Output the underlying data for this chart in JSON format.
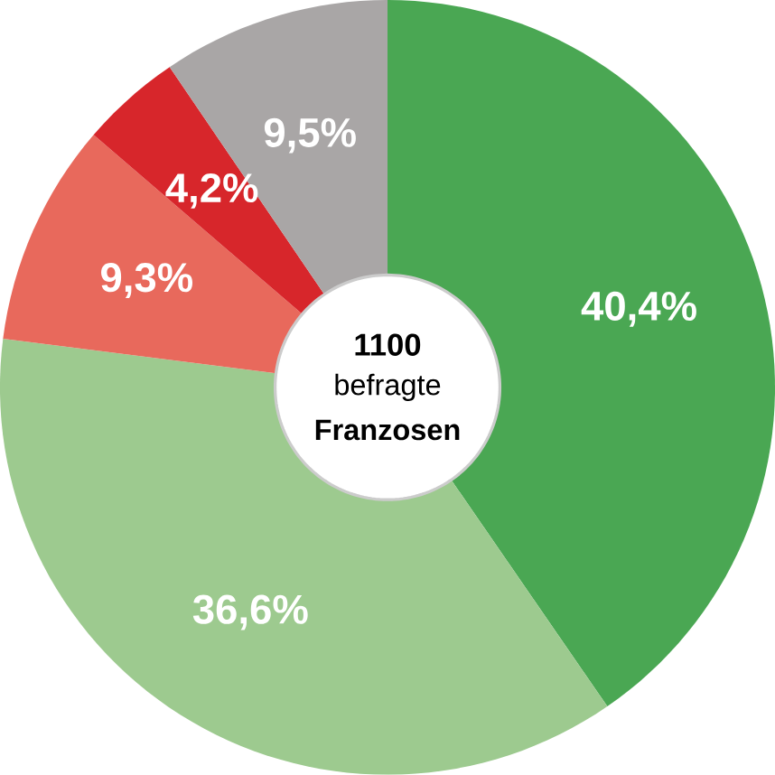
{
  "chart_data": {
    "type": "donut",
    "categories": [
      null,
      null,
      null,
      null,
      null
    ],
    "values": [
      40.4,
      36.6,
      9.3,
      4.2,
      9.5
    ],
    "colors": [
      "#4aa753",
      "#9dca8f",
      "#e8695c",
      "#d7262b",
      "#a9a6a6"
    ],
    "value_labels": [
      "40,4%",
      "36,6%",
      "9,3%",
      "4,2%",
      "9,5%"
    ],
    "annotations": [
      "1100",
      "befragte",
      "Franzosen"
    ]
  }
}
